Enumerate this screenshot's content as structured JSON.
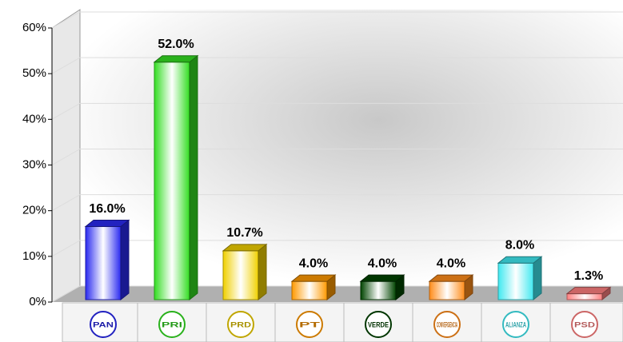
{
  "chart_data": {
    "type": "bar3d",
    "categories": [
      "PAN",
      "PRI",
      "PRD",
      "PT",
      "VERDE",
      "CONVERGENCIA",
      "ALIANZA",
      "PSD"
    ],
    "values": [
      16.0,
      52.0,
      10.7,
      4.0,
      4.0,
      4.0,
      8.0,
      1.3
    ],
    "value_labels": [
      "16.0%",
      "52.0%",
      "10.7%",
      "4.0%",
      "4.0%",
      "4.0%",
      "8.0%",
      "1.3%"
    ],
    "colors": [
      "#2a2af0",
      "#33dd22",
      "#f0d000",
      "#ff9900",
      "#004400",
      "#ff8c1a",
      "#40e8f0",
      "#ff8080"
    ],
    "ylim": [
      0,
      60
    ],
    "yticks": [
      {
        "value": 0,
        "label": "0%"
      },
      {
        "value": 10,
        "label": "10%"
      },
      {
        "value": 20,
        "label": "20%"
      },
      {
        "value": 30,
        "label": "30%"
      },
      {
        "value": 40,
        "label": "40%"
      },
      {
        "value": 50,
        "label": "50%"
      },
      {
        "value": 60,
        "label": "60%"
      }
    ],
    "grid": true
  }
}
